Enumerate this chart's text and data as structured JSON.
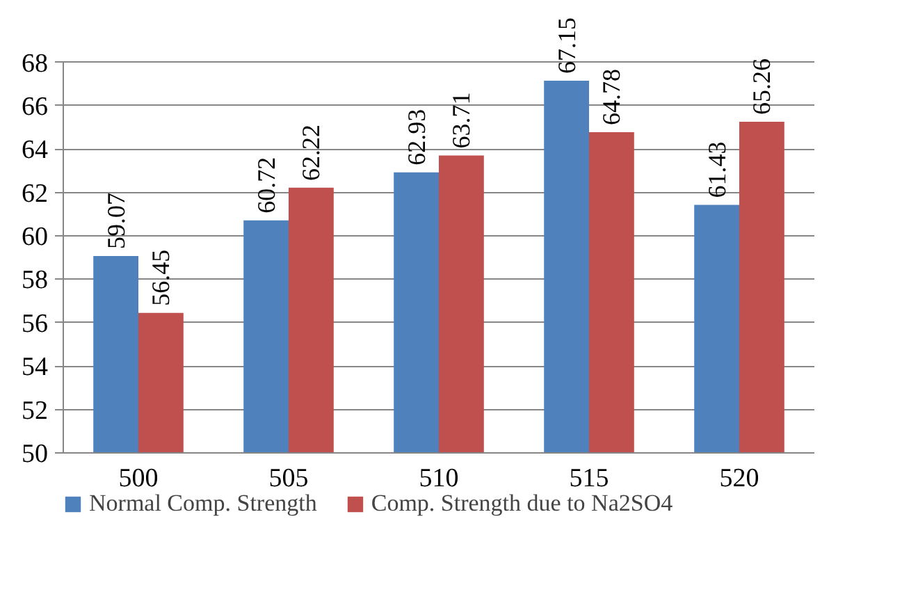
{
  "chart_data": {
    "type": "bar",
    "categories": [
      "500",
      "505",
      "510",
      "515",
      "520"
    ],
    "series": [
      {
        "name": "Normal Comp. Strength",
        "color": "#4f81bd",
        "values": [
          59.07,
          60.72,
          62.93,
          67.15,
          61.43
        ]
      },
      {
        "name": "Comp. Strength due to Na2SO4",
        "color": "#c0504d",
        "values": [
          56.45,
          62.22,
          63.71,
          64.78,
          65.26
        ]
      }
    ],
    "ylim": [
      50,
      68
    ],
    "yticks": [
      50,
      52,
      54,
      56,
      58,
      60,
      62,
      64,
      66,
      68
    ],
    "grid": "y",
    "legend": "bottom",
    "data_labels": true
  }
}
